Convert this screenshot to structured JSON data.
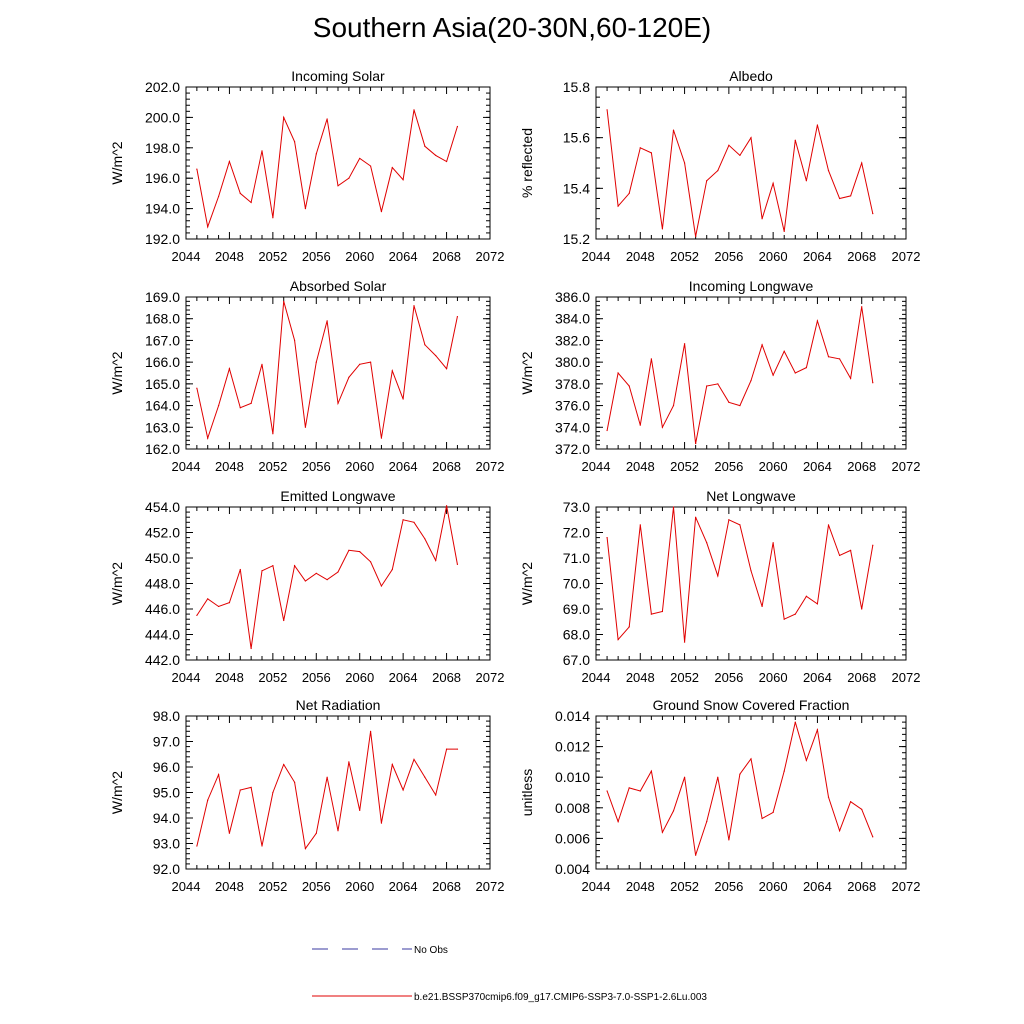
{
  "page_title": "Southern Asia(20-30N,60-120E)",
  "legend": {
    "entries": [
      {
        "label": "No Obs",
        "color": "#3a3aa0",
        "dash": "dashed"
      },
      {
        "label": "b.e21.BSSP370cmip6.f09_g17.CMIP6-SSP3-7.0-SSP1-2.6Lu.003",
        "color": "#e00000",
        "dash": "solid"
      }
    ]
  },
  "chart_data": [
    {
      "type": "line",
      "title": "Incoming Solar",
      "ylabel": "W/m^2",
      "xlim": [
        2044,
        2072
      ],
      "ylim": [
        192,
        202
      ],
      "line_color": "#e00000",
      "x_ticks": [
        "2044",
        "2048",
        "2052",
        "2056",
        "2060",
        "2064",
        "2068",
        "2072"
      ],
      "y_ticks": [
        "192.0",
        "194.0",
        "196.0",
        "198.0",
        "200.0",
        "202.0"
      ],
      "y_tick_values": [
        192,
        194,
        196,
        198,
        200,
        202
      ],
      "y_minor_step": 0.4,
      "series": [
        {
          "x": [
            2045,
            2046,
            2047,
            2048,
            2049,
            2050,
            2051,
            2052,
            2053,
            2054,
            2055,
            2056,
            2057,
            2058,
            2059,
            2060,
            2061,
            2062,
            2063,
            2064,
            2065,
            2066,
            2067,
            2068,
            2069
          ],
          "values": [
            196.6,
            192.8,
            194.8,
            197.1,
            195.0,
            194.4,
            197.8,
            193.4,
            200.0,
            198.4,
            194.0,
            197.6,
            199.9,
            195.5,
            196.0,
            197.3,
            196.8,
            193.8,
            196.7,
            195.9,
            200.5,
            198.1,
            197.5,
            197.1,
            199.4
          ]
        }
      ]
    },
    {
      "type": "line",
      "title": "Albedo",
      "ylabel": "% reflected",
      "xlim": [
        2044,
        2072
      ],
      "ylim": [
        15.2,
        15.8
      ],
      "line_color": "#e00000",
      "x_ticks": [
        "2044",
        "2048",
        "2052",
        "2056",
        "2060",
        "2064",
        "2068",
        "2072"
      ],
      "y_ticks": [
        "15.2",
        "15.4",
        "15.6",
        "15.8"
      ],
      "y_tick_values": [
        15.2,
        15.4,
        15.6,
        15.8
      ],
      "y_minor_step": 0.04,
      "series": [
        {
          "x": [
            2045,
            2046,
            2047,
            2048,
            2049,
            2050,
            2051,
            2052,
            2053,
            2054,
            2055,
            2056,
            2057,
            2058,
            2059,
            2060,
            2061,
            2062,
            2063,
            2064,
            2065,
            2066,
            2067,
            2068,
            2069
          ],
          "values": [
            15.71,
            15.33,
            15.38,
            15.56,
            15.54,
            15.24,
            15.63,
            15.5,
            15.21,
            15.43,
            15.47,
            15.57,
            15.53,
            15.6,
            15.28,
            15.42,
            15.23,
            15.59,
            15.43,
            15.65,
            15.47,
            15.36,
            15.37,
            15.5,
            15.3
          ]
        }
      ]
    },
    {
      "type": "line",
      "title": "Absorbed Solar",
      "ylabel": "W/m^2",
      "xlim": [
        2044,
        2072
      ],
      "ylim": [
        162,
        169
      ],
      "line_color": "#e00000",
      "x_ticks": [
        "2044",
        "2048",
        "2052",
        "2056",
        "2060",
        "2064",
        "2068",
        "2072"
      ],
      "y_ticks": [
        "162.0",
        "163.0",
        "164.0",
        "165.0",
        "166.0",
        "167.0",
        "168.0",
        "169.0"
      ],
      "y_tick_values": [
        162,
        163,
        164,
        165,
        166,
        167,
        168,
        169
      ],
      "y_minor_step": 0.2,
      "series": [
        {
          "x": [
            2045,
            2046,
            2047,
            2048,
            2049,
            2050,
            2051,
            2052,
            2053,
            2054,
            2055,
            2056,
            2057,
            2058,
            2059,
            2060,
            2061,
            2062,
            2063,
            2064,
            2065,
            2066,
            2067,
            2068,
            2069
          ],
          "values": [
            164.8,
            162.5,
            164.0,
            165.7,
            163.9,
            164.1,
            165.9,
            162.7,
            168.8,
            167.0,
            163.0,
            166.0,
            167.9,
            164.1,
            165.3,
            165.9,
            166.0,
            162.5,
            165.6,
            164.3,
            168.6,
            166.8,
            166.3,
            165.7,
            168.1
          ]
        }
      ]
    },
    {
      "type": "line",
      "title": "Incoming Longwave",
      "ylabel": "W/m^2",
      "xlim": [
        2044,
        2072
      ],
      "ylim": [
        372,
        386
      ],
      "line_color": "#e00000",
      "x_ticks": [
        "2044",
        "2048",
        "2052",
        "2056",
        "2060",
        "2064",
        "2068",
        "2072"
      ],
      "y_ticks": [
        "372.0",
        "374.0",
        "376.0",
        "378.0",
        "380.0",
        "382.0",
        "384.0",
        "386.0"
      ],
      "y_tick_values": [
        372,
        374,
        376,
        378,
        380,
        382,
        384,
        386
      ],
      "y_minor_step": 0.4,
      "series": [
        {
          "x": [
            2045,
            2046,
            2047,
            2048,
            2049,
            2050,
            2051,
            2052,
            2053,
            2054,
            2055,
            2056,
            2057,
            2058,
            2059,
            2060,
            2061,
            2062,
            2063,
            2064,
            2065,
            2066,
            2067,
            2068,
            2069
          ],
          "values": [
            373.7,
            379.0,
            377.8,
            374.2,
            380.3,
            374.0,
            376.0,
            381.7,
            372.5,
            377.8,
            378.0,
            376.3,
            376.0,
            378.3,
            381.6,
            378.8,
            381.0,
            379.0,
            379.5,
            383.8,
            380.5,
            380.3,
            378.5,
            385.1,
            378.1
          ]
        }
      ]
    },
    {
      "type": "line",
      "title": "Emitted Longwave",
      "ylabel": "W/m^2",
      "xlim": [
        2044,
        2072
      ],
      "ylim": [
        442,
        454
      ],
      "line_color": "#e00000",
      "x_ticks": [
        "2044",
        "2048",
        "2052",
        "2056",
        "2060",
        "2064",
        "2068",
        "2072"
      ],
      "y_ticks": [
        "442.0",
        "444.0",
        "446.0",
        "448.0",
        "450.0",
        "452.0",
        "454.0"
      ],
      "y_tick_values": [
        442,
        444,
        446,
        448,
        450,
        452,
        454
      ],
      "y_minor_step": 0.4,
      "series": [
        {
          "x": [
            2045,
            2046,
            2047,
            2048,
            2049,
            2050,
            2051,
            2052,
            2053,
            2054,
            2055,
            2056,
            2057,
            2058,
            2059,
            2060,
            2061,
            2062,
            2063,
            2064,
            2065,
            2066,
            2067,
            2068,
            2069
          ],
          "values": [
            445.5,
            446.8,
            446.2,
            446.5,
            449.1,
            442.9,
            449.0,
            449.4,
            445.1,
            449.4,
            448.2,
            448.8,
            448.3,
            448.9,
            450.6,
            450.5,
            449.7,
            447.8,
            449.1,
            453.0,
            452.8,
            451.5,
            449.8,
            454.1,
            449.5
          ]
        }
      ]
    },
    {
      "type": "line",
      "title": "Net Longwave",
      "ylabel": "W/m^2",
      "xlim": [
        2044,
        2072
      ],
      "ylim": [
        67,
        73
      ],
      "line_color": "#e00000",
      "x_ticks": [
        "2044",
        "2048",
        "2052",
        "2056",
        "2060",
        "2064",
        "2068",
        "2072"
      ],
      "y_ticks": [
        "67.0",
        "68.0",
        "69.0",
        "70.0",
        "71.0",
        "72.0",
        "73.0"
      ],
      "y_tick_values": [
        67,
        68,
        69,
        70,
        71,
        72,
        73
      ],
      "y_minor_step": 0.2,
      "series": [
        {
          "x": [
            2045,
            2046,
            2047,
            2048,
            2049,
            2050,
            2051,
            2052,
            2053,
            2054,
            2055,
            2056,
            2057,
            2058,
            2059,
            2060,
            2061,
            2062,
            2063,
            2064,
            2065,
            2066,
            2067,
            2068,
            2069
          ],
          "values": [
            71.8,
            67.8,
            68.3,
            72.3,
            68.8,
            68.9,
            73.0,
            67.7,
            72.6,
            71.6,
            70.3,
            72.5,
            72.3,
            70.5,
            69.1,
            71.6,
            68.6,
            68.8,
            69.5,
            69.2,
            72.3,
            71.1,
            71.3,
            69.0,
            71.5
          ]
        }
      ]
    },
    {
      "type": "line",
      "title": "Net Radiation",
      "ylabel": "W/m^2",
      "xlim": [
        2044,
        2072
      ],
      "ylim": [
        92,
        98
      ],
      "line_color": "#e00000",
      "x_ticks": [
        "2044",
        "2048",
        "2052",
        "2056",
        "2060",
        "2064",
        "2068",
        "2072"
      ],
      "y_ticks": [
        "92.0",
        "93.0",
        "94.0",
        "95.0",
        "96.0",
        "97.0",
        "98.0"
      ],
      "y_tick_values": [
        92,
        93,
        94,
        95,
        96,
        97,
        98
      ],
      "y_minor_step": 0.2,
      "series": [
        {
          "x": [
            2045,
            2046,
            2047,
            2048,
            2049,
            2050,
            2051,
            2052,
            2053,
            2054,
            2055,
            2056,
            2057,
            2058,
            2059,
            2060,
            2061,
            2062,
            2063,
            2064,
            2065,
            2066,
            2067,
            2068,
            2069
          ],
          "values": [
            92.9,
            94.7,
            95.7,
            93.4,
            95.1,
            95.2,
            92.9,
            95.0,
            96.1,
            95.4,
            92.8,
            93.4,
            95.6,
            93.5,
            96.2,
            94.3,
            97.4,
            93.8,
            96.1,
            95.1,
            96.3,
            95.6,
            94.9,
            96.7,
            96.7
          ]
        }
      ]
    },
    {
      "type": "line",
      "title": "Ground Snow Covered Fraction",
      "ylabel": "unitless",
      "xlim": [
        2044,
        2072
      ],
      "ylim": [
        0.004,
        0.014
      ],
      "line_color": "#e00000",
      "x_ticks": [
        "2044",
        "2048",
        "2052",
        "2056",
        "2060",
        "2064",
        "2068",
        "2072"
      ],
      "y_ticks": [
        "0.004",
        "0.006",
        "0.008",
        "0.010",
        "0.012",
        "0.014"
      ],
      "y_tick_values": [
        0.004,
        0.006,
        0.008,
        0.01,
        0.012,
        0.014
      ],
      "y_minor_step": 0.0004,
      "series": [
        {
          "x": [
            2045,
            2046,
            2047,
            2048,
            2049,
            2050,
            2051,
            2052,
            2053,
            2054,
            2055,
            2056,
            2057,
            2058,
            2059,
            2060,
            2061,
            2062,
            2063,
            2064,
            2065,
            2066,
            2067,
            2068,
            2069
          ],
          "values": [
            0.0091,
            0.0071,
            0.0093,
            0.0091,
            0.0104,
            0.0064,
            0.0078,
            0.01,
            0.0049,
            0.0071,
            0.01,
            0.0059,
            0.0102,
            0.0112,
            0.0073,
            0.0077,
            0.0104,
            0.0136,
            0.0111,
            0.0131,
            0.0087,
            0.0065,
            0.0084,
            0.0079,
            0.0061
          ]
        }
      ]
    }
  ]
}
